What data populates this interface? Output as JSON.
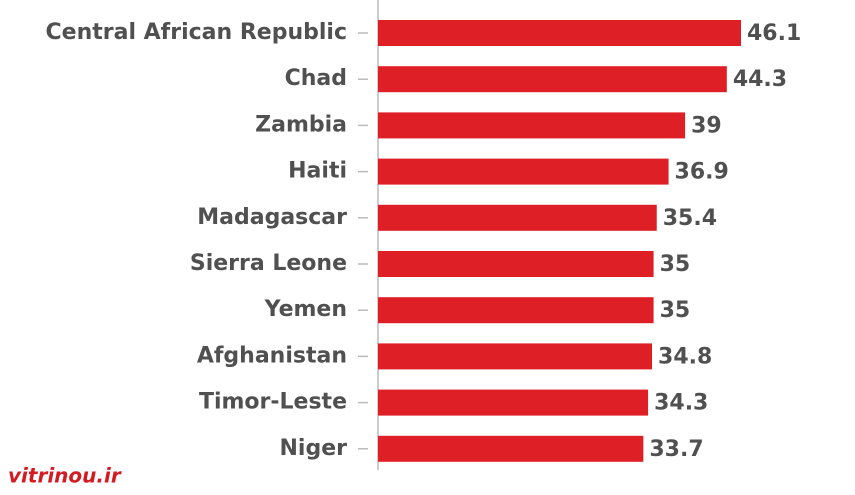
{
  "chart_data": {
    "type": "bar",
    "categories": [
      "Central African Republic",
      "Chad",
      "Zambia",
      "Haiti",
      "Madagascar",
      "Sierra Leone",
      "Yemen",
      "Afghanistan",
      "Timor-Leste",
      "Niger"
    ],
    "values": [
      46.1,
      44.3,
      39,
      36.9,
      35.4,
      35,
      35,
      34.8,
      34.3,
      33.7
    ],
    "color": "#df1f26"
  },
  "watermark": "vitrinou.ir"
}
